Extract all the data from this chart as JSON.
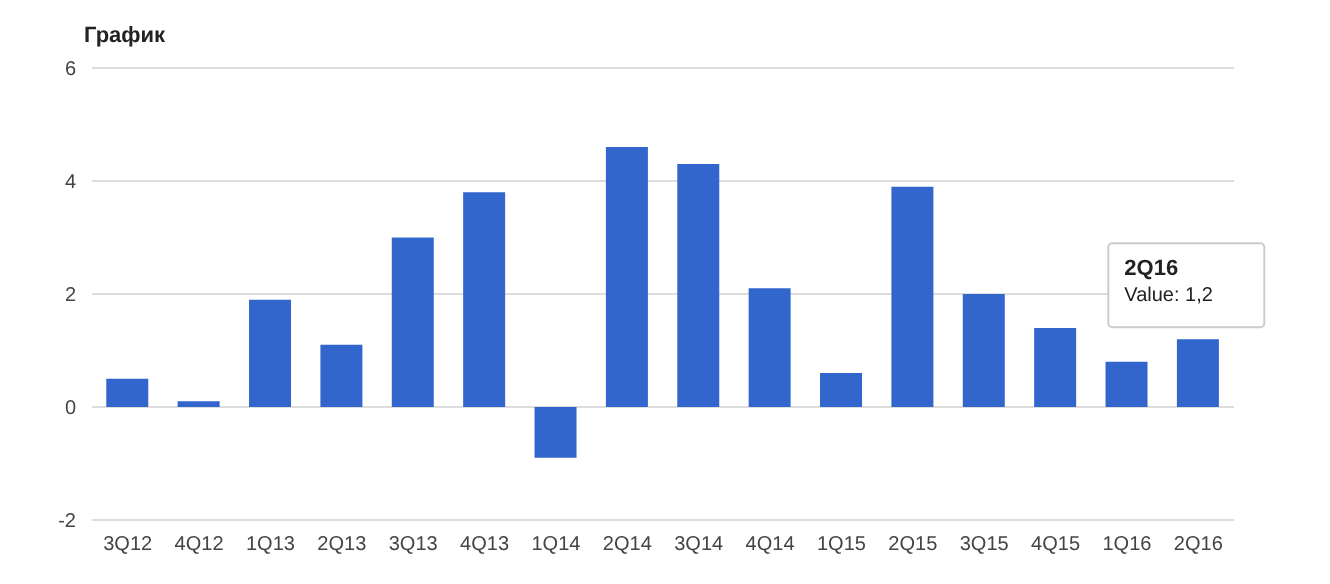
{
  "chart_data": {
    "type": "bar",
    "title": "График",
    "categories": [
      "3Q12",
      "4Q12",
      "1Q13",
      "2Q13",
      "3Q13",
      "4Q13",
      "1Q14",
      "2Q14",
      "3Q14",
      "4Q14",
      "1Q15",
      "2Q15",
      "3Q15",
      "4Q15",
      "1Q16",
      "2Q16"
    ],
    "values": [
      0.5,
      0.1,
      1.9,
      1.1,
      3.0,
      3.8,
      -0.9,
      4.6,
      4.3,
      2.1,
      0.6,
      3.9,
      2.0,
      1.4,
      0.8,
      1.2
    ],
    "color": "#3366cc",
    "ylim": [
      -2,
      6
    ],
    "yticks": [
      -2,
      0,
      2,
      4,
      6
    ],
    "grid": "y",
    "annotations": [
      {
        "text": "2Q16\nValue: 1,2",
        "x": "2Q16",
        "y": 1.2
      }
    ]
  }
}
